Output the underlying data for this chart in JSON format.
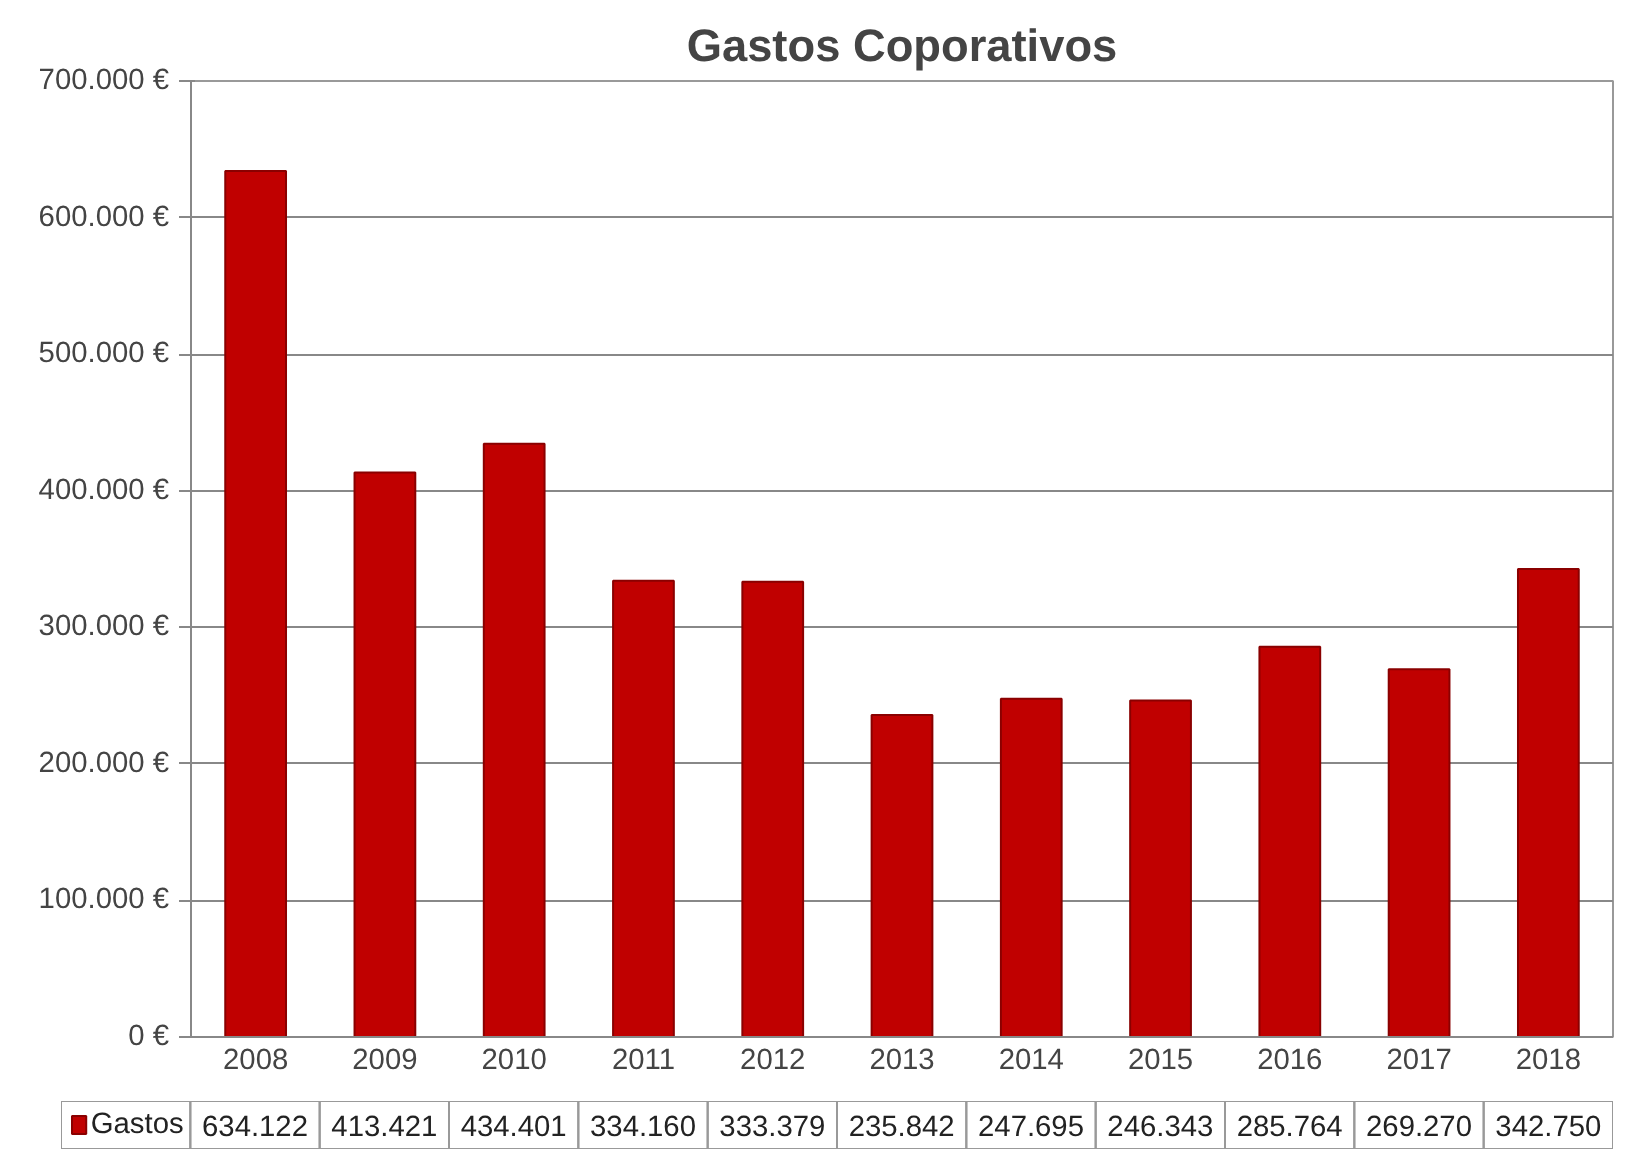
{
  "chart_data": {
    "type": "bar",
    "title": "Gastos Coporativos",
    "categories": [
      "2008",
      "2009",
      "2010",
      "2011",
      "2012",
      "2013",
      "2014",
      "2015",
      "2016",
      "2017",
      "2018"
    ],
    "series": [
      {
        "name": "Gastos",
        "color": "#c00000",
        "values": [
          634122,
          413421,
          434401,
          334160,
          333379,
          235842,
          247695,
          246343,
          285764,
          269270,
          342750
        ],
        "value_labels": [
          "634.122",
          "413.421",
          "434.401",
          "334.160",
          "333.379",
          "235.842",
          "247.695",
          "246.343",
          "285.764",
          "269.270",
          "342.750"
        ]
      }
    ],
    "ylim": [
      0,
      700000
    ],
    "yticks": [
      {
        "value": 0,
        "label": "0 €"
      },
      {
        "value": 100000,
        "label": "100.000 €"
      },
      {
        "value": 200000,
        "label": "200.000 €"
      },
      {
        "value": 300000,
        "label": "300.000 €"
      },
      {
        "value": 400000,
        "label": "400.000 €"
      },
      {
        "value": 500000,
        "label": "500.000 €"
      },
      {
        "value": 600000,
        "label": "600.000 €"
      },
      {
        "value": 700000,
        "label": "700.000 €"
      }
    ],
    "grid": "y",
    "data_labels": true
  }
}
